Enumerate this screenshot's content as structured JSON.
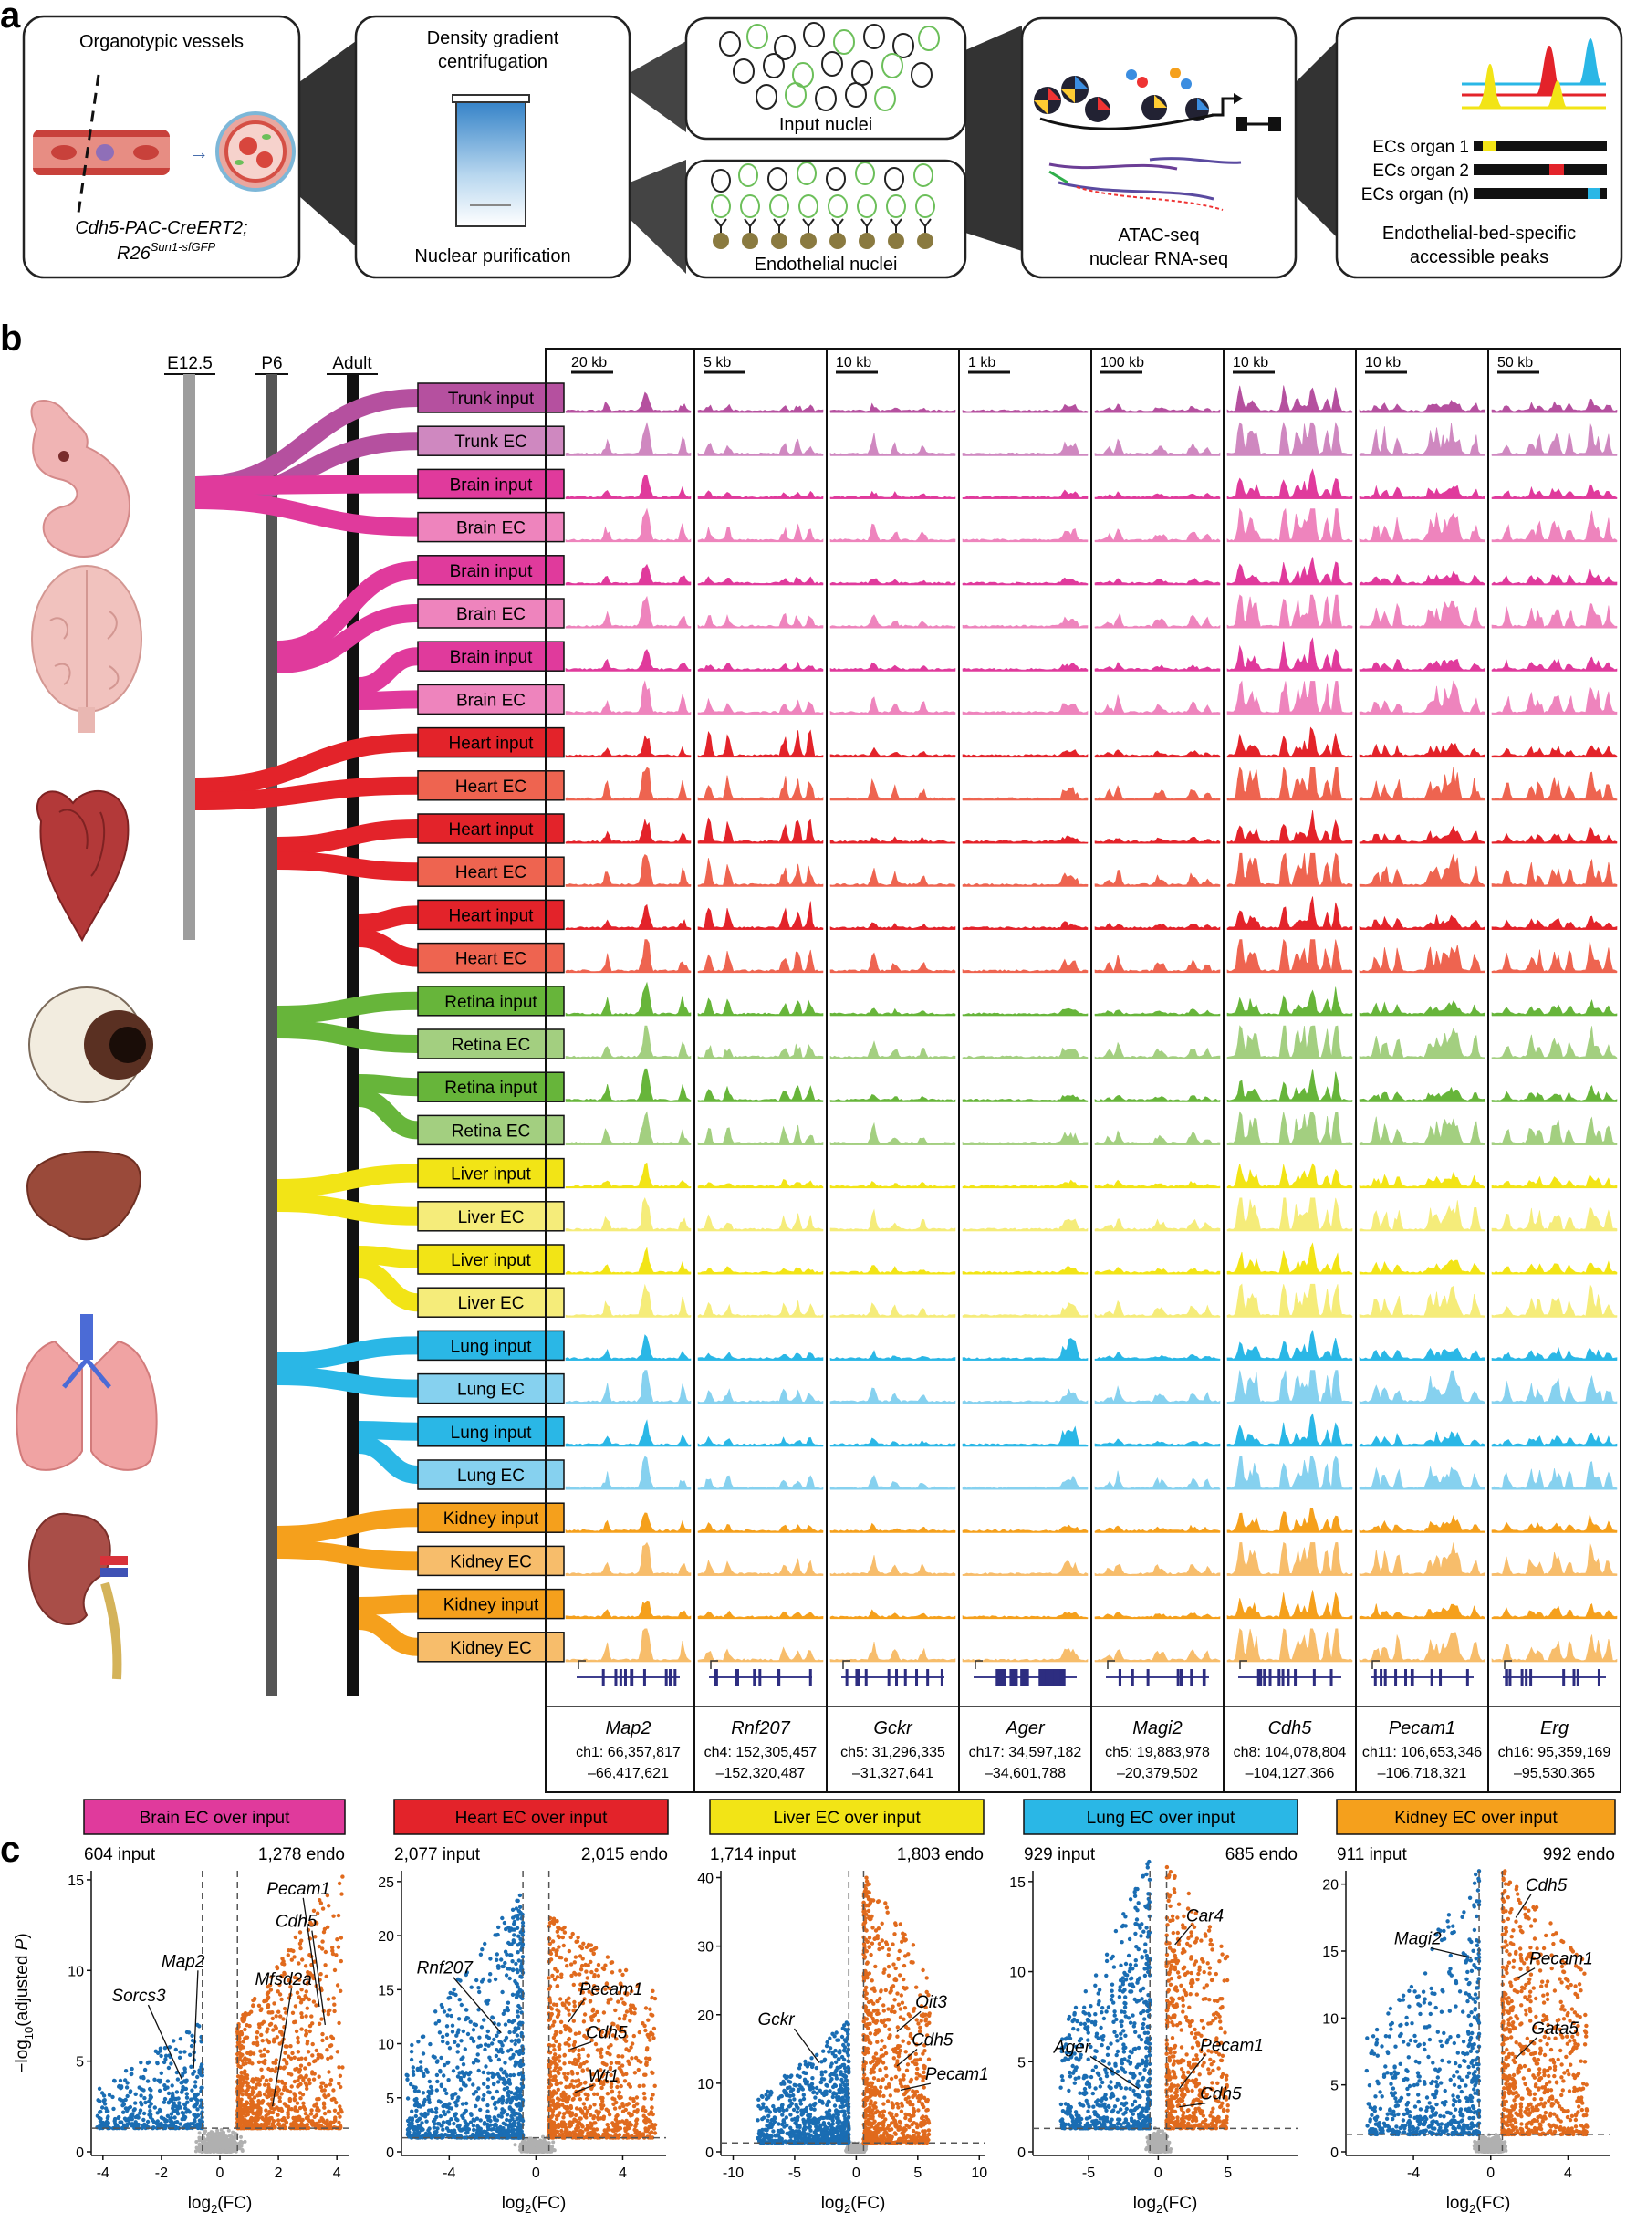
{
  "panel_labels": {
    "a": "a",
    "b": "b",
    "c": "c"
  },
  "panel_a": {
    "box1": {
      "title": "Organotypic vessels",
      "genotype_line1": "Cdh5-PAC-CreERT2;",
      "genotype_line2_base": "R26",
      "genotype_line2_sup": "Sun1-sfGFP"
    },
    "box2": {
      "title_line1": "Density gradient",
      "title_line2": "centrifugation",
      "bottom": "Nuclear purification"
    },
    "box3a": {
      "label": "Input nuclei"
    },
    "box3b": {
      "label": "Endothelial nuclei"
    },
    "box4": {
      "line1": "ATAC-seq",
      "line2": "nuclear RNA-seq"
    },
    "box5": {
      "rows": [
        "ECs organ 1",
        "ECs organ 2",
        "ECs organ (n)"
      ],
      "caption_line1": "Endothelial-bed-specific",
      "caption_line2": "accessible peaks"
    }
  },
  "panel_b": {
    "stages": [
      "E12.5",
      "P6",
      "Adult"
    ],
    "tracks": [
      {
        "label": "Trunk input",
        "organ": "trunk",
        "type": "input"
      },
      {
        "label": "Trunk EC",
        "organ": "trunk",
        "type": "ec"
      },
      {
        "label": "Brain input",
        "organ": "brain",
        "type": "input"
      },
      {
        "label": "Brain EC",
        "organ": "brain",
        "type": "ec"
      },
      {
        "label": "Brain input",
        "organ": "brain",
        "type": "input"
      },
      {
        "label": "Brain EC",
        "organ": "brain",
        "type": "ec"
      },
      {
        "label": "Brain input",
        "organ": "brain",
        "type": "input"
      },
      {
        "label": "Brain EC",
        "organ": "brain",
        "type": "ec"
      },
      {
        "label": "Heart input",
        "organ": "heart",
        "type": "input"
      },
      {
        "label": "Heart EC",
        "organ": "heart",
        "type": "ec"
      },
      {
        "label": "Heart input",
        "organ": "heart",
        "type": "input"
      },
      {
        "label": "Heart EC",
        "organ": "heart",
        "type": "ec"
      },
      {
        "label": "Heart input",
        "organ": "heart",
        "type": "input"
      },
      {
        "label": "Heart EC",
        "organ": "heart",
        "type": "ec"
      },
      {
        "label": "Retina input",
        "organ": "retina",
        "type": "input"
      },
      {
        "label": "Retina EC",
        "organ": "retina",
        "type": "ec"
      },
      {
        "label": "Retina input",
        "organ": "retina",
        "type": "input"
      },
      {
        "label": "Retina EC",
        "organ": "retina",
        "type": "ec"
      },
      {
        "label": "Liver input",
        "organ": "liver",
        "type": "input"
      },
      {
        "label": "Liver EC",
        "organ": "liver",
        "type": "ec"
      },
      {
        "label": "Liver input",
        "organ": "liver",
        "type": "input"
      },
      {
        "label": "Liver EC",
        "organ": "liver",
        "type": "ec"
      },
      {
        "label": "Lung input",
        "organ": "lung",
        "type": "input"
      },
      {
        "label": "Lung EC",
        "organ": "lung",
        "type": "ec"
      },
      {
        "label": "Lung input",
        "organ": "lung",
        "type": "input"
      },
      {
        "label": "Lung EC",
        "organ": "lung",
        "type": "ec"
      },
      {
        "label": "Kidney input",
        "organ": "kidney",
        "type": "input"
      },
      {
        "label": "Kidney EC",
        "organ": "kidney",
        "type": "ec"
      },
      {
        "label": "Kidney input",
        "organ": "kidney",
        "type": "input"
      },
      {
        "label": "Kidney EC",
        "organ": "kidney",
        "type": "ec"
      }
    ],
    "loci": [
      {
        "scale": "20 kb",
        "gene": "Map2",
        "coord1": "ch1: 66,357,817",
        "coord2": "–66,417,621"
      },
      {
        "scale": "5 kb",
        "gene": "Rnf207",
        "coord1": "ch4: 152,305,457",
        "coord2": "–152,320,487"
      },
      {
        "scale": "10 kb",
        "gene": "Gckr",
        "coord1": "ch5: 31,296,335",
        "coord2": "–31,327,641"
      },
      {
        "scale": "1 kb",
        "gene": "Ager",
        "coord1": "ch17: 34,597,182",
        "coord2": "–34,601,788"
      },
      {
        "scale": "100 kb",
        "gene": "Magi2",
        "coord1": "ch5: 19,883,978",
        "coord2": "–20,379,502"
      },
      {
        "scale": "10 kb",
        "gene": "Cdh5",
        "coord1": "ch8: 104,078,804",
        "coord2": "–104,127,366"
      },
      {
        "scale": "10 kb",
        "gene": "Pecam1",
        "coord1": "ch11: 106,653,346",
        "coord2": "–106,718,321"
      },
      {
        "scale": "50 kb",
        "gene": "Erg",
        "coord1": "ch16: 95,359,169",
        "coord2": "–95,530,365"
      }
    ]
  },
  "colors": {
    "trunk": "#b5509f",
    "trunk_ec": "#cf88c0",
    "brain": "#e03a9c",
    "brain_ec": "#ee84bd",
    "heart": "#e3232a",
    "heart_ec": "#ee6450",
    "retina": "#67b53a",
    "retina_ec": "#a3cf80",
    "liver": "#f2e416",
    "liver_ec": "#f5ec7a",
    "lung": "#2ab7e6",
    "lung_ec": "#86d1ef",
    "kidney": "#f5a01c",
    "kidney_ec": "#f7bd6b",
    "blue_dots": "#1a6db3",
    "orange_dots": "#e06a1d",
    "grey_dots": "#b0b0b0"
  },
  "chart_data": [
    {
      "type": "scatter",
      "title": "Brain EC over input",
      "header_color": "#e03a9c",
      "count_left": "604 input",
      "count_right": "1,278 endo",
      "xlabel": "log2(FC)",
      "ylabel": "−log10(adjusted P)",
      "xlim": [
        -4.4,
        4.4
      ],
      "ylim": [
        0,
        15.5
      ],
      "xticks": [
        -4,
        -2,
        0,
        2,
        4
      ],
      "yticks": [
        0,
        5,
        10,
        15
      ],
      "vlines": [
        -0.6,
        0.6
      ],
      "hline": 1.3,
      "n_blue": 420,
      "n_orange": 900,
      "blue_spread": {
        "x": [
          -4.2,
          -0.6
        ],
        "ymax": 6
      },
      "orange_spread": {
        "x": [
          0.6,
          4.2
        ],
        "ymax": 14.5
      },
      "annotations": [
        {
          "text": "Pecam1",
          "label": [
            1.6,
            14.2
          ],
          "point": [
            3.4,
            8.0
          ]
        },
        {
          "text": "Cdh5",
          "label": [
            1.9,
            12.4
          ],
          "point": [
            3.6,
            7.0
          ]
        },
        {
          "text": "Map2",
          "label": [
            -2.0,
            10.2
          ],
          "point": [
            -0.9,
            4.6
          ]
        },
        {
          "text": "Mfsd2a",
          "label": [
            1.2,
            9.2
          ],
          "point": [
            1.8,
            2.5
          ]
        },
        {
          "text": "Sorcs3",
          "label": [
            -3.7,
            8.3
          ],
          "point": [
            -1.3,
            4.0
          ]
        }
      ]
    },
    {
      "type": "scatter",
      "title": "Heart EC over input",
      "header_color": "#e3232a",
      "count_left": "2,077 input",
      "count_right": "2,015 endo",
      "xlabel": "log2(FC)",
      "ylabel": "",
      "xlim": [
        -6.2,
        6.0
      ],
      "ylim": [
        0,
        26
      ],
      "xticks": [
        -4,
        0,
        4
      ],
      "yticks": [
        0,
        5,
        10,
        15,
        20,
        25
      ],
      "vlines": [
        -0.6,
        0.6
      ],
      "hline": 1.3,
      "n_blue": 900,
      "n_orange": 900,
      "blue_spread": {
        "x": [
          -6,
          -0.6
        ],
        "ymax": 23
      },
      "orange_spread": {
        "x": [
          0.6,
          5.5
        ],
        "ymax": 21
      },
      "annotations": [
        {
          "text": "Rnf207",
          "label": [
            -5.5,
            16.5
          ],
          "point": [
            -1.6,
            11.0
          ]
        },
        {
          "text": "Pecam1",
          "label": [
            2.0,
            14.5
          ],
          "point": [
            1.5,
            12.0
          ]
        },
        {
          "text": "Cdh5",
          "label": [
            2.3,
            10.5
          ],
          "point": [
            1.6,
            9.5
          ]
        },
        {
          "text": "Wt1",
          "label": [
            2.4,
            6.5
          ],
          "point": [
            1.8,
            5.5
          ]
        }
      ]
    },
    {
      "type": "scatter",
      "title": "Liver EC over input",
      "header_color": "#f2e416",
      "count_left": "1,714 input",
      "count_right": "1,803 endo",
      "xlabel": "log2(FC)",
      "ylabel": "",
      "xlim": [
        -11,
        10.5
      ],
      "ylim": [
        0,
        41
      ],
      "xticks": [
        -10,
        -5,
        0,
        5,
        10
      ],
      "yticks": [
        0,
        10,
        20,
        30,
        40
      ],
      "vlines": [
        -0.6,
        0.6
      ],
      "hline": 1.3,
      "n_blue": 800,
      "n_orange": 800,
      "blue_spread": {
        "x": [
          -8,
          -0.6
        ],
        "ymax": 18
      },
      "orange_spread": {
        "x": [
          0.6,
          6
        ],
        "ymax": 40
      },
      "annotations": [
        {
          "text": "Gckr",
          "label": [
            -8.0,
            18.5
          ],
          "point": [
            -3.0,
            13.0
          ]
        },
        {
          "text": "Oit3",
          "label": [
            4.8,
            21.0
          ],
          "point": [
            3.3,
            17.5
          ]
        },
        {
          "text": "Cdh5",
          "label": [
            4.5,
            15.5
          ],
          "point": [
            3.3,
            12.5
          ]
        },
        {
          "text": "Pecam1",
          "label": [
            5.6,
            10.5
          ],
          "point": [
            3.6,
            9.0
          ]
        }
      ]
    },
    {
      "type": "scatter",
      "title": "Lung EC over input",
      "header_color": "#2ab7e6",
      "count_left": "929 input",
      "count_right": "685 endo",
      "xlabel": "log2(FC)",
      "ylabel": "",
      "xlim": [
        -9,
        10
      ],
      "ylim": [
        0,
        15.6
      ],
      "xticks": [
        -5,
        0,
        5
      ],
      "yticks": [
        0,
        5,
        10,
        15
      ],
      "vlines": [
        -0.6,
        0.6
      ],
      "hline": 1.3,
      "n_blue": 700,
      "n_orange": 600,
      "blue_spread": {
        "x": [
          -7,
          -0.6
        ],
        "ymax": 15
      },
      "orange_spread": {
        "x": [
          0.6,
          5
        ],
        "ymax": 15
      },
      "annotations": [
        {
          "text": "Car4",
          "label": [
            2.0,
            12.8
          ],
          "point": [
            1.2,
            11.5
          ]
        },
        {
          "text": "Ager",
          "label": [
            -7.5,
            5.5
          ],
          "point": [
            -1.4,
            3.5
          ]
        },
        {
          "text": "Pecam1",
          "label": [
            3.0,
            5.6
          ],
          "point": [
            1.5,
            3.5
          ]
        },
        {
          "text": "Cdh5",
          "label": [
            3.0,
            2.9
          ],
          "point": [
            1.5,
            2.5
          ]
        }
      ]
    },
    {
      "type": "scatter",
      "title": "Kidney EC over input",
      "header_color": "#f5a01c",
      "count_left": "911 input",
      "count_right": "992 endo",
      "xlabel": "log2(FC)",
      "ylabel": "",
      "xlim": [
        -7.5,
        6.2
      ],
      "ylim": [
        0,
        21
      ],
      "xticks": [
        -4,
        0,
        4
      ],
      "yticks": [
        0,
        5,
        10,
        15,
        20
      ],
      "vlines": [
        -0.6,
        0.6
      ],
      "hline": 1.3,
      "n_blue": 600,
      "n_orange": 700,
      "blue_spread": {
        "x": [
          -6.5,
          -0.6
        ],
        "ymax": 20
      },
      "orange_spread": {
        "x": [
          0.6,
          5
        ],
        "ymax": 20
      },
      "annotations": [
        {
          "text": "Cdh5",
          "label": [
            1.8,
            19.5
          ],
          "point": [
            1.3,
            17.5
          ]
        },
        {
          "text": "Magi2",
          "label": [
            -5.0,
            15.5
          ],
          "point": [
            -1.0,
            14.5
          ]
        },
        {
          "text": "Pecam1",
          "label": [
            2.0,
            14.0
          ],
          "point": [
            1.4,
            13.0
          ]
        },
        {
          "text": "Gata5",
          "label": [
            2.1,
            8.8
          ],
          "point": [
            1.3,
            7.0
          ]
        }
      ]
    }
  ]
}
